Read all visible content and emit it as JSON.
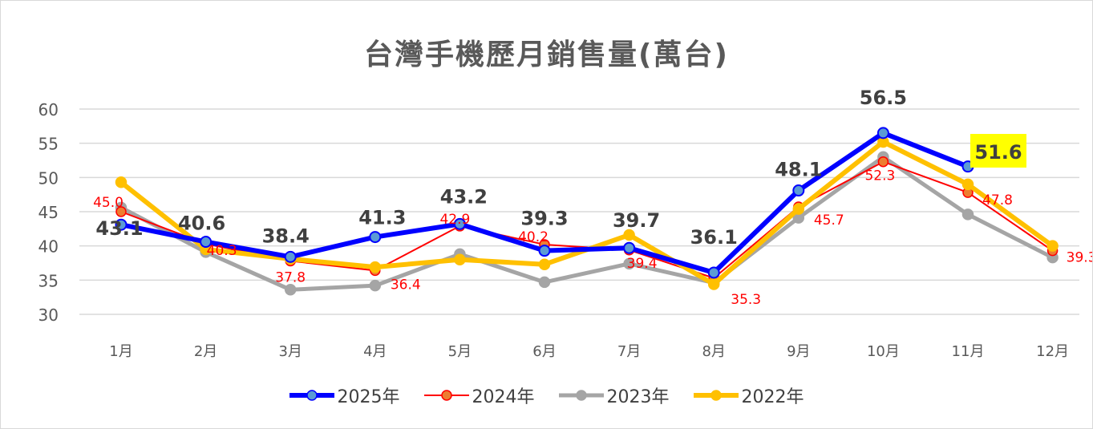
{
  "chart_data": {
    "type": "line",
    "title": "台灣手機歷月銷售量(萬台)",
    "categories": [
      "1月",
      "2月",
      "3月",
      "4月",
      "5月",
      "6月",
      "7月",
      "8月",
      "9月",
      "10月",
      "11月",
      "12月"
    ],
    "ylim": [
      30,
      60
    ],
    "yticks": [
      30,
      35,
      40,
      45,
      50,
      55,
      60
    ],
    "grid": true,
    "legend_position": "bottom",
    "series": [
      {
        "name": "2025年",
        "color": "#0000FF",
        "marker_fill": "#5B9BD5",
        "values": [
          43.1,
          40.6,
          38.4,
          41.3,
          43.2,
          39.3,
          39.7,
          36.1,
          48.1,
          56.5,
          51.6,
          null
        ],
        "labels_shown": true,
        "highlight_label": "51.6",
        "highlight_color": "#FFFF00"
      },
      {
        "name": "2024年",
        "color": "#FF0000",
        "marker_fill": "#ED7D31",
        "values": [
          45.0,
          40.3,
          37.8,
          36.4,
          42.9,
          40.2,
          39.4,
          35.3,
          45.7,
          52.3,
          47.8,
          39.3
        ],
        "labels_shown": true
      },
      {
        "name": "2023年",
        "color": "#A5A5A5",
        "values": [
          45.6,
          39.1,
          33.6,
          34.2,
          38.8,
          34.7,
          37.4,
          34.6,
          44.1,
          53.0,
          44.6,
          38.3
        ],
        "labels_shown": false
      },
      {
        "name": "2022年",
        "color": "#FFC000",
        "values": [
          49.3,
          39.5,
          38.1,
          36.9,
          38.0,
          37.3,
          41.6,
          34.4,
          45.4,
          55.2,
          49.0,
          40.0
        ],
        "labels_shown": false
      }
    ]
  }
}
